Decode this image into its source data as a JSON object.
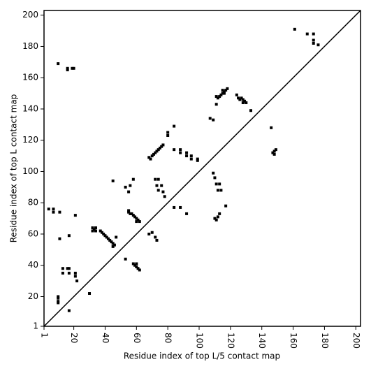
{
  "chart_data": {
    "type": "scatter",
    "xlabel": "Residue index of top L/5 contact map",
    "ylabel": "Residue index of top L contact map",
    "color": "#000000",
    "x": [
      10,
      16,
      16,
      19,
      20,
      10,
      10,
      10,
      10,
      17,
      13,
      13,
      16,
      17,
      17,
      21,
      21,
      22,
      30,
      4,
      7,
      7,
      11,
      17,
      11,
      21,
      32,
      33,
      34,
      37,
      38,
      39,
      40,
      41,
      42,
      43,
      44,
      45,
      45,
      46,
      47,
      32,
      34,
      45,
      53,
      55,
      56,
      57,
      58,
      59,
      60,
      61,
      62,
      60,
      55,
      58,
      59,
      60,
      61,
      62,
      60,
      53,
      56,
      55,
      58,
      68,
      70,
      71,
      72,
      73,
      74,
      75,
      76,
      77,
      80,
      80,
      69,
      72,
      74,
      73,
      76,
      74,
      77,
      78,
      68,
      70,
      72,
      73,
      84,
      84,
      88,
      88,
      92,
      92,
      95,
      95,
      99,
      99,
      84,
      88,
      92,
      107,
      109,
      109,
      110,
      111,
      113,
      112,
      114,
      110,
      111,
      112,
      113,
      117,
      111,
      112,
      113,
      114,
      115,
      116,
      117,
      118,
      111,
      115,
      116,
      124,
      125,
      126,
      127,
      128,
      129,
      130,
      128,
      133,
      146,
      147,
      148,
      149,
      148,
      161,
      169,
      173,
      173,
      173,
      176
    ],
    "values": [
      169,
      166,
      165,
      166,
      166,
      20,
      19,
      17,
      16,
      11,
      38,
      35,
      38,
      38,
      35,
      35,
      33,
      30,
      22,
      76,
      76,
      74,
      74,
      59,
      57,
      72,
      64,
      63,
      62,
      62,
      61,
      60,
      59,
      58,
      57,
      56,
      55,
      54,
      52,
      53,
      58,
      62,
      64,
      94,
      44,
      74,
      73,
      73,
      72,
      71,
      70,
      69,
      68,
      68,
      75,
      41,
      40,
      39,
      38,
      37,
      41,
      90,
      91,
      87,
      95,
      109,
      110,
      111,
      112,
      113,
      114,
      115,
      116,
      117,
      123,
      125,
      108,
      95,
      95,
      91,
      91,
      88,
      87,
      84,
      60,
      61,
      58,
      56,
      129,
      114,
      114,
      112,
      112,
      110,
      110,
      108,
      108,
      107,
      77,
      77,
      73,
      134,
      133,
      99,
      96,
      92,
      92,
      88,
      88,
      70,
      69,
      71,
      73,
      78,
      148,
      147,
      148,
      149,
      150,
      151,
      152,
      153,
      143,
      152,
      150,
      149,
      147,
      146,
      147,
      146,
      145,
      144,
      144,
      139,
      128,
      112,
      111,
      114,
      113,
      191,
      188,
      188,
      184,
      182,
      181
    ],
    "xlim": [
      1,
      203
    ],
    "ylim": [
      1,
      203
    ],
    "xticks": [
      1,
      20,
      40,
      60,
      80,
      100,
      120,
      140,
      160,
      180,
      200
    ],
    "yticks": [
      1,
      20,
      40,
      60,
      80,
      100,
      120,
      140,
      160,
      180,
      200
    ]
  }
}
